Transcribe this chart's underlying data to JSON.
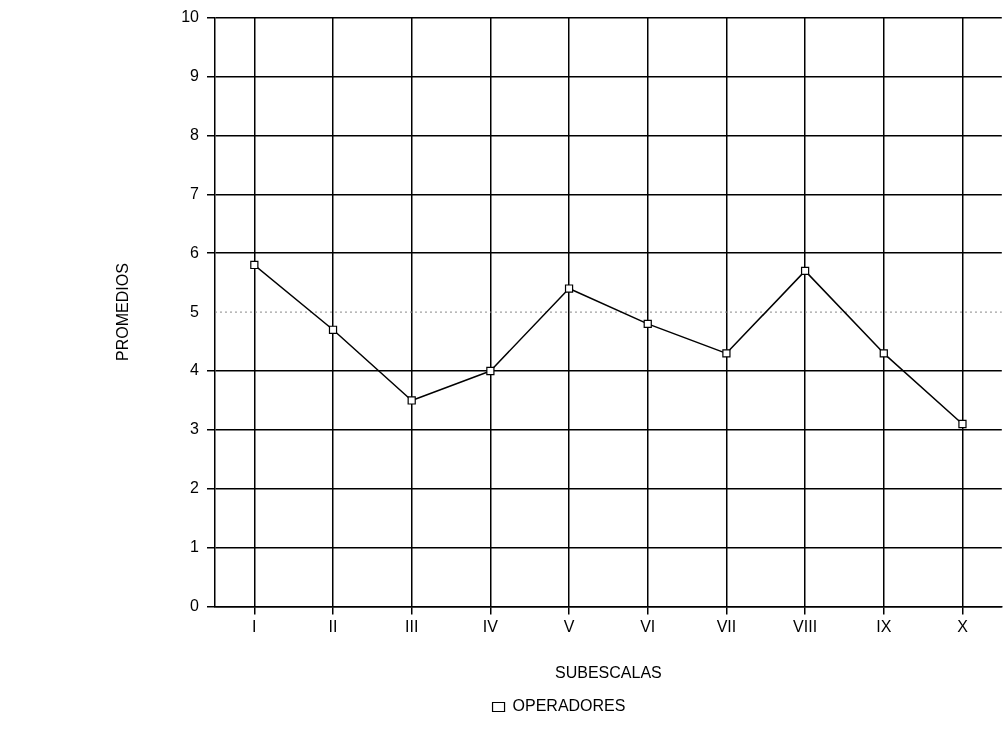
{
  "chart_data": {
    "type": "line",
    "xlabel": "SUBESCALAS",
    "ylabel": "PROMEDIOS",
    "categories": [
      "I",
      "II",
      "III",
      "IV",
      "V",
      "VI",
      "VII",
      "VIII",
      "IX",
      "X"
    ],
    "series": [
      {
        "name": "OPERADORES",
        "color": "#000000",
        "values": [
          5.8,
          4.7,
          3.5,
          4.0,
          5.4,
          4.8,
          4.3,
          5.7,
          4.3,
          3.1
        ]
      }
    ],
    "ylim": [
      0,
      10
    ],
    "yticks": [
      0,
      1,
      2,
      3,
      4,
      5,
      6,
      7,
      8,
      9,
      10
    ],
    "grid": true,
    "legend": "bottom",
    "marker": "square",
    "line_style": "solid",
    "ref_lines": [
      {
        "axis": "y",
        "value": 5,
        "line_style": "dotted",
        "color": "#888888"
      }
    ]
  }
}
